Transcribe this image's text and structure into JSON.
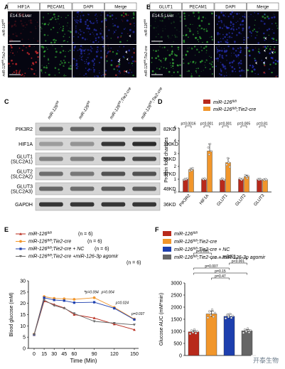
{
  "panels": {
    "A": {
      "label": "A",
      "headers": [
        "HIF1A",
        "PECAM1",
        "DAPI",
        "Merge"
      ],
      "tissue": "E14.5 Liver",
      "rows": [
        "miR-126fl/fl",
        "miR-126fl/fl;Tie2-cre"
      ]
    },
    "B": {
      "label": "B",
      "headers": [
        "GLUT1",
        "PECAM1",
        "DAPI",
        "Merge"
      ],
      "tissue": "E14.5 Liver",
      "rows": [
        "miR-126fl/fl",
        "miR-126fl/fl;Tie2-cre"
      ]
    },
    "C": {
      "label": "C",
      "lanes": [
        "miR-126fl/fl",
        "miR-126fl/fl",
        "miR-126fl/fl;Tie2-cre",
        "miR-126fl/fl;Tie2-cre"
      ],
      "blots": [
        {
          "protein": "PIK3R2",
          "size": "82KD"
        },
        {
          "protein": "HIF1A",
          "size": "110KD"
        },
        {
          "protein": "GLUT1\n(SLC2A1)",
          "size": "55KD"
        },
        {
          "protein": "GLUT2\n(SLC2A2)",
          "size": "57KD"
        },
        {
          "protein": "GLUT3\n(SLC2A3)",
          "size": "48KD"
        },
        {
          "protein": "GAPDH",
          "size": "36KD"
        }
      ]
    },
    "D": {
      "label": "D"
    },
    "E": {
      "label": "E"
    },
    "F": {
      "label": "F"
    }
  },
  "chart_data": [
    {
      "panel": "D",
      "type": "bar",
      "ylabel": "Protein fold changes",
      "ylim": [
        0,
        5
      ],
      "yticks": [
        0,
        1,
        2,
        3,
        4,
        5
      ],
      "categories": [
        "PIK3R2",
        "HIF1A",
        "GLUT1",
        "GLUT2",
        "GLUT3"
      ],
      "series": [
        {
          "name": "miR-126fl/fl",
          "color": "#b8291b",
          "values": [
            1.0,
            1.0,
            1.0,
            1.0,
            1.0
          ]
        },
        {
          "name": "miR-126fl/fl;Tie2-cre",
          "color": "#f1962b",
          "values": [
            1.75,
            3.2,
            2.3,
            1.2,
            0.98
          ]
        }
      ],
      "pvalues": [
        "p=0.0016",
        "p=0.001",
        "p=0.001",
        "p=0.005",
        "p=0.81"
      ]
    },
    {
      "panel": "E",
      "type": "line",
      "xlabel": "Time (Min)",
      "ylabel": "Blood glucose (mM)",
      "x": [
        0,
        15,
        30,
        45,
        60,
        90,
        120,
        150
      ],
      "ylim": [
        0,
        30
      ],
      "yticks": [
        0,
        5,
        10,
        15,
        20,
        25,
        30
      ],
      "series": [
        {
          "name": "miR-126fl/fl",
          "n": "(n = 6)",
          "color": "#b8291b",
          "marker": "triangle",
          "values": [
            6.0,
            21.0,
            19.5,
            18.0,
            15.0,
            13.5,
            10.8,
            8.3
          ]
        },
        {
          "name": "miR-126fl/fl;Tie2-cre",
          "n": "(n = 6)",
          "color": "#f1962b",
          "marker": "circle",
          "values": [
            6.3,
            23.0,
            22.2,
            22.0,
            21.8,
            22.5,
            18.2,
            13.0
          ]
        },
        {
          "name": "miR-126fl/fl;Tie2-cre + NC",
          "n": "(n = 6)",
          "color": "#1d3fae",
          "marker": "square",
          "values": [
            6.1,
            22.5,
            21.5,
            21.2,
            20.3,
            20.5,
            17.8,
            12.8
          ]
        },
        {
          "name": "miR-126fl/fl;Tie2-cre +miR-126-3p agomir",
          "n": "(n = 6)",
          "color": "#666666",
          "marker": "triangle-down",
          "values": [
            6.0,
            21.5,
            19.0,
            17.8,
            15.5,
            12.0,
            11.2,
            10.5
          ]
        }
      ],
      "annotations": [
        {
          "x": 90,
          "y": 23.8,
          "text": "p=0.094"
        },
        {
          "x": 90,
          "y": 23.8,
          "text": "p=0.004"
        },
        {
          "x": 120,
          "y": 19.5,
          "text": "p=0.024"
        },
        {
          "x": 150,
          "y": 14.5,
          "text": "p=0.037"
        }
      ]
    },
    {
      "panel": "F",
      "type": "bar",
      "ylabel": "Glucose AUC (mM*min)",
      "ylim": [
        0,
        3000
      ],
      "yticks": [
        0,
        500,
        1000,
        1500,
        2000,
        2500,
        3000
      ],
      "categories": [
        "miR-126fl/fl",
        "miR-126fl/fl;Tie2-cre",
        "miR-126fl/fl;Tie2-cre + NC",
        "miR-126fl/fl;Tie2-cre + miR-126-3p agomir"
      ],
      "series": [
        {
          "name": "Glucose AUC",
          "values": [
            980,
            1720,
            1620,
            1020
          ],
          "colors": [
            "#b8291b",
            "#f1962b",
            "#1d3fae",
            "#666666"
          ]
        }
      ],
      "comparisons": [
        "p<0.001",
        "p<0.001",
        "p<0.001",
        "p=0.007",
        "p=0.15",
        "p=0.47"
      ]
    }
  ],
  "watermark": "开泰生物"
}
